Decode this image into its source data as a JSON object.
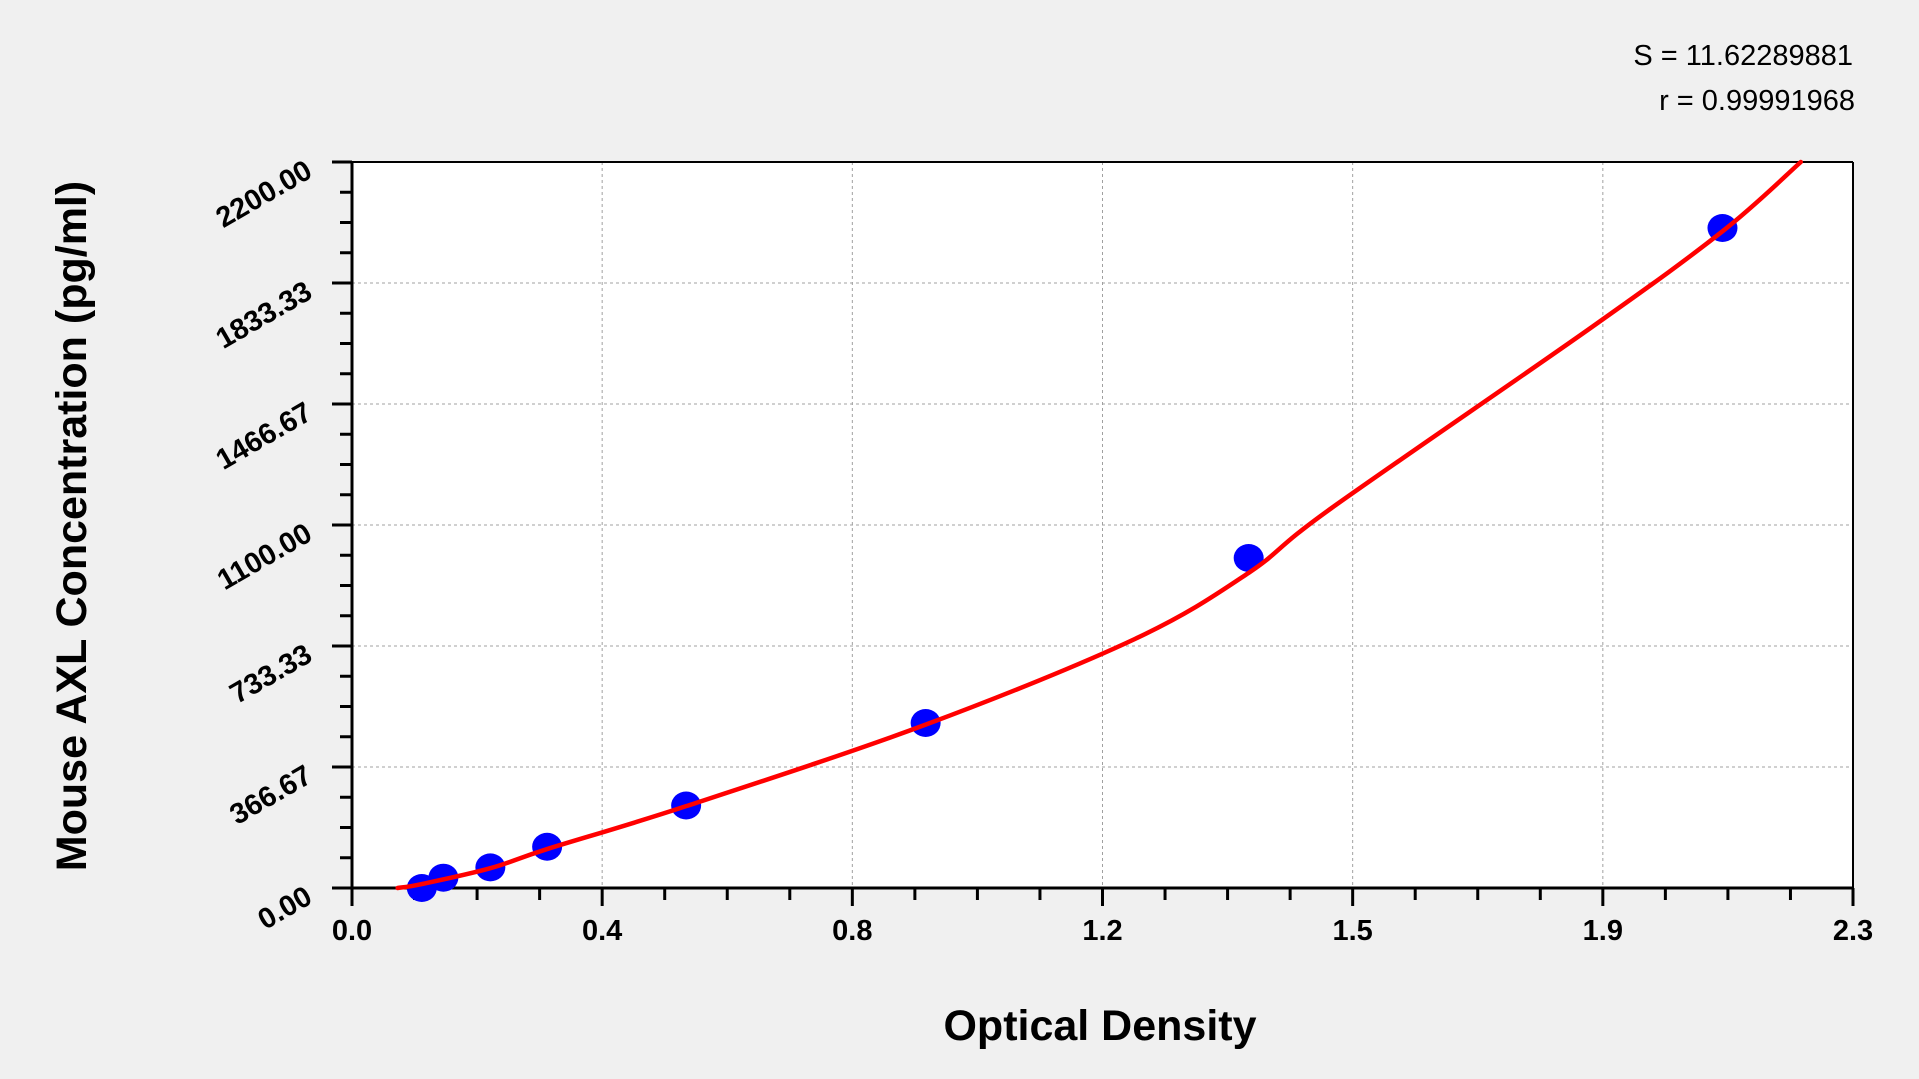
{
  "chart_data": {
    "type": "scatter",
    "title": "",
    "xlabel": "Optical Density",
    "ylabel": "Mouse AXL Concentration (pg/ml)",
    "xlim": [
      0,
      2.3
    ],
    "ylim": [
      0,
      2200
    ],
    "x_ticks": [
      0,
      0.38333,
      0.76667,
      1.15,
      1.53333,
      1.91667,
      2.3
    ],
    "x_tick_labels": [
      "0.0",
      "0.4",
      "0.8",
      "1.2",
      "1.5",
      "1.9",
      "2.3"
    ],
    "y_ticks": [
      0,
      366.67,
      733.33,
      1100,
      1466.67,
      1833.33,
      2200
    ],
    "y_tick_labels": [
      "0.00",
      "366.67",
      "733.33",
      "1100.00",
      "1466.67",
      "1833.33",
      "2200.00"
    ],
    "grid": true,
    "annotations": [
      "S = 11.62289881",
      "r = 0.99991968"
    ],
    "colors": {
      "points": "#0000ff",
      "fit": "#ff0000",
      "background": "#f0f0f0",
      "plot": "#ffffff",
      "grid": "#a0a0a0"
    },
    "series": [
      {
        "kind": "points",
        "x": [
          0.107,
          0.14,
          0.212,
          0.299,
          0.512,
          0.879,
          1.374,
          2.1
        ],
        "y": [
          0,
          31.25,
          62.5,
          125,
          250,
          500,
          1000,
          2000
        ]
      },
      {
        "kind": "fit-curve",
        "x": [
          0.07,
          0.107,
          0.212,
          0.299,
          0.512,
          0.879,
          1.2,
          1.374,
          1.5,
          1.9,
          2.1,
          2.22
        ],
        "y": [
          0,
          12,
          60,
          118,
          248,
          495,
          755,
          955,
          1150,
          1700,
          1990,
          2200
        ]
      }
    ]
  }
}
